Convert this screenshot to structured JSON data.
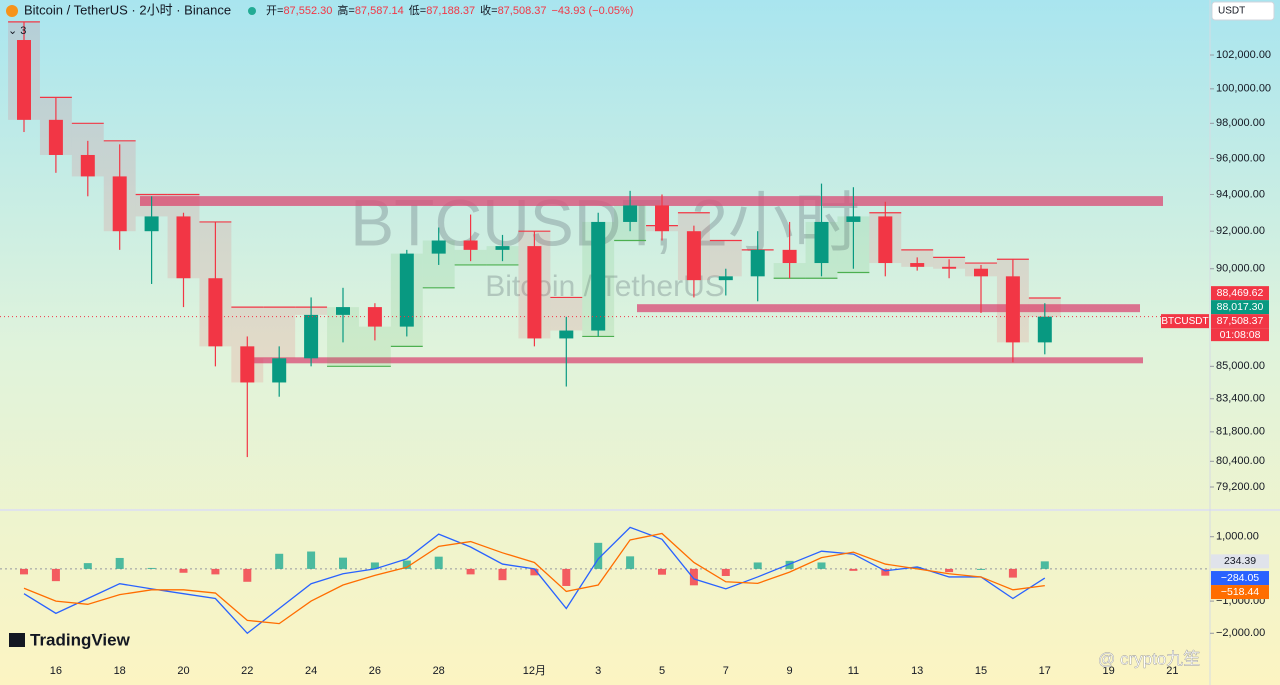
{
  "header": {
    "title": "Bitcoin / TetherUS · 2小时 · Binance",
    "ohlc": [
      {
        "label": "开=",
        "value": "87,552.30"
      },
      {
        "label": "高=",
        "value": "87,587.14"
      },
      {
        "label": "低=",
        "value": "87,188.37"
      },
      {
        "label": "收=",
        "value": "87,508.37"
      }
    ],
    "change": "−43.93 (−0.05%)",
    "indicators": "3",
    "currency": "USDT",
    "watermark": "BTCUSDT, 2小时",
    "watermark_sub": "Bitcoin / TetherUS",
    "symbol_tag": "BTCUSDT",
    "countdown": "01:08:08",
    "logo": "TradingView",
    "credit": "@ crypto九笙"
  },
  "chart_data": [
    {
      "type": "candlestick",
      "log_scale": true,
      "up_color": "#089981",
      "down_color": "#f23645",
      "categories": [
        null,
        "16",
        null,
        "18",
        null,
        "20",
        null,
        "22",
        null,
        "24",
        null,
        "26",
        null,
        "28",
        null,
        null,
        "12月",
        null,
        "3",
        null,
        "5",
        null,
        "7",
        null,
        "9",
        null,
        "11",
        null,
        "13",
        null,
        "15",
        null,
        "17",
        null,
        "19",
        null,
        "21"
      ],
      "open": [
        102900,
        98200,
        96200,
        95000,
        92000,
        92800,
        89500,
        86000,
        84200,
        85400,
        87600,
        88000,
        87000,
        90800,
        91500,
        91000,
        91200,
        86400,
        86800,
        92500,
        93400,
        92000,
        89400,
        89600,
        91000,
        90300,
        92500,
        92800,
        90300,
        90100,
        90000,
        89600,
        86200,
        null,
        null,
        null,
        null
      ],
      "high": [
        104000,
        99500,
        97000,
        96800,
        93900,
        93000,
        92500,
        86500,
        86000,
        88500,
        89000,
        88200,
        91000,
        92200,
        92900,
        91800,
        92000,
        87500,
        93000,
        94200,
        94000,
        92300,
        90000,
        92000,
        92500,
        94600,
        94400,
        93600,
        90600,
        90500,
        90200,
        90500,
        88200,
        null,
        null,
        null,
        null
      ],
      "low": [
        97500,
        95200,
        93900,
        91000,
        89200,
        88000,
        85000,
        80600,
        83500,
        85000,
        86200,
        86300,
        86500,
        90200,
        90400,
        90400,
        86000,
        84000,
        86500,
        92000,
        91500,
        88500,
        88600,
        88300,
        89500,
        89600,
        90000,
        89600,
        89900,
        89500,
        87700,
        85200,
        85600,
        null,
        null,
        null,
        null
      ],
      "close": [
        98200,
        96200,
        95000,
        92000,
        92800,
        89500,
        86000,
        84200,
        85400,
        87600,
        88000,
        87000,
        90800,
        91500,
        91000,
        91200,
        86400,
        86800,
        92500,
        93400,
        92000,
        89400,
        89600,
        91000,
        90300,
        92500,
        92800,
        90300,
        90100,
        90000,
        89600,
        86200,
        87508.37,
        null,
        null,
        null,
        null
      ],
      "close_labels": [
        null,
        null,
        null,
        null,
        null,
        null,
        null,
        null,
        null,
        null,
        null,
        null,
        null,
        null,
        null,
        null,
        null,
        null,
        null,
        null,
        null,
        null,
        null,
        null,
        null,
        null,
        null,
        null,
        null,
        null,
        null,
        null,
        "87,508.37",
        null,
        null,
        null,
        null
      ],
      "trend": {
        "up_color": "#4caf50",
        "down_color": "#f23645",
        "values": [
          104000,
          99500,
          98000,
          97000,
          94000,
          94000,
          92500,
          88000,
          88000,
          88000,
          85000,
          85000,
          86000,
          89000,
          90200,
          90200,
          92000,
          88500,
          86500,
          91500,
          92300,
          93000,
          91500,
          91000,
          89500,
          89500,
          89800,
          93000,
          91000,
          90600,
          90300,
          90500,
          88469.62,
          null,
          null,
          null,
          null
        ],
        "value_labels": [
          null,
          null,
          null,
          null,
          null,
          null,
          null,
          null,
          null,
          null,
          null,
          null,
          null,
          null,
          null,
          null,
          null,
          null,
          null,
          null,
          null,
          null,
          null,
          null,
          null,
          null,
          null,
          null,
          null,
          null,
          null,
          null,
          "88,469.62",
          null,
          null,
          null,
          null
        ]
      },
      "price_labels": [
        {
          "value": 88017.3,
          "label": "88,017.30",
          "color": "#089981"
        }
      ],
      "zones": {
        "color": "#d9537a",
        "items": [
          {
            "low": 93370,
            "high": 93910
          },
          {
            "low": 87740,
            "high": 88150
          },
          {
            "low": 85150,
            "high": 85450
          }
        ]
      },
      "ylim": [
        78140,
        105340
      ],
      "yticks": [
        {
          "value": 102000,
          "label": "102,000.00"
        },
        {
          "value": 100000,
          "label": "100,000.00"
        },
        {
          "value": 98000,
          "label": "98,000.00"
        },
        {
          "value": 96000,
          "label": "96,000.00"
        },
        {
          "value": 94000,
          "label": "94,000.00"
        },
        {
          "value": 92000,
          "label": "92,000.00"
        },
        {
          "value": 90000,
          "label": "90,000.00"
        },
        {
          "value": 85000,
          "label": "85,000.00"
        },
        {
          "value": 83400,
          "label": "83,400.00"
        },
        {
          "value": 81800,
          "label": "81,800.00"
        },
        {
          "value": 80400,
          "label": "80,400.00"
        },
        {
          "value": 79200,
          "label": "79,200.00"
        }
      ]
    },
    {
      "type": "macd",
      "up_color": "#22ab94",
      "down_color": "#f23645",
      "ylim": [
        -2830,
        1830
      ],
      "yticks": [
        {
          "value": 1000,
          "label": "1,000.00"
        },
        {
          "value": -1000,
          "label": "−1,000.00"
        },
        {
          "value": -2000,
          "label": "−2,000.00"
        }
      ],
      "histogram": [
        -170,
        -380,
        180,
        340,
        30,
        -120,
        -170,
        -400,
        470,
        540,
        350,
        200,
        260,
        380,
        -170,
        -350,
        -200,
        -530,
        810,
        390,
        -180,
        -510,
        -220,
        200,
        250,
        200,
        -60,
        -210,
        60,
        -100,
        0,
        -270,
        234.39,
        null,
        null,
        null,
        null
      ],
      "macd": {
        "color": "#2962ff",
        "values": [
          -770,
          -1380,
          -920,
          -460,
          -620,
          -770,
          -920,
          -2000,
          -1230,
          -460,
          -150,
          0,
          310,
          1080,
          680,
          150,
          0,
          -1230,
          310,
          1290,
          920,
          -310,
          -620,
          -250,
          150,
          550,
          460,
          -60,
          60,
          -250,
          -250,
          -920,
          -284.05,
          null,
          null,
          null,
          null
        ],
        "value_labels": [
          null,
          null,
          null,
          null,
          null,
          null,
          null,
          null,
          null,
          null,
          null,
          null,
          null,
          null,
          null,
          null,
          null,
          null,
          null,
          null,
          null,
          null,
          null,
          null,
          null,
          null,
          null,
          null,
          null,
          null,
          null,
          null,
          "−284.05",
          null,
          null,
          null,
          null
        ]
      },
      "signal": {
        "color": "#ff6d00",
        "values": [
          -600,
          -1000,
          -1100,
          -800,
          -650,
          -650,
          -750,
          -1600,
          -1700,
          -1000,
          -500,
          -200,
          50,
          700,
          850,
          500,
          200,
          -700,
          -500,
          900,
          1100,
          200,
          -400,
          -450,
          -100,
          350,
          520,
          150,
          0,
          -150,
          -250,
          -650,
          -518.44,
          null,
          null,
          null,
          null
        ],
        "value_labels": [
          null,
          null,
          null,
          null,
          null,
          null,
          null,
          null,
          null,
          null,
          null,
          null,
          null,
          null,
          null,
          null,
          null,
          null,
          null,
          null,
          null,
          null,
          null,
          null,
          null,
          null,
          null,
          null,
          null,
          null,
          null,
          null,
          "−518.44",
          null,
          null,
          null,
          null
        ]
      }
    }
  ]
}
